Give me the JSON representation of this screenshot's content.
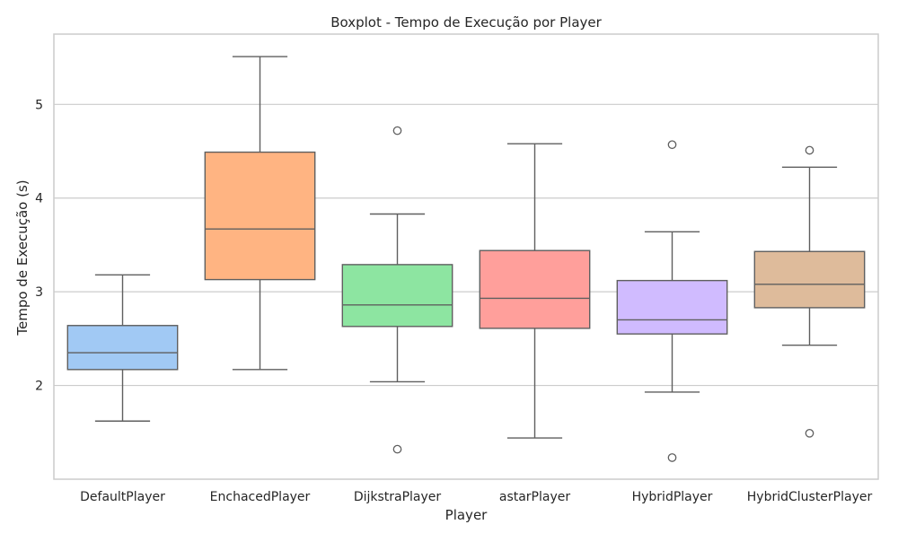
{
  "chart_data": {
    "type": "boxplot",
    "title": "Boxplot - Tempo de Execução por Player",
    "xlabel": "Player",
    "ylabel": "Tempo de Execução (s)",
    "ylim": [
      1.0,
      5.75
    ],
    "yticks": [
      2,
      3,
      4,
      5
    ],
    "grid": "horizontal",
    "categories": [
      "DefaultPlayer",
      "EnchacedPlayer",
      "DijkstraPlayer",
      "astarPlayer",
      "HybridPlayer",
      "HybridClusterPlayer"
    ],
    "boxes": [
      {
        "whisker_low": 1.62,
        "q1": 2.17,
        "median": 2.35,
        "q3": 2.64,
        "whisker_high": 3.18,
        "outliers": [],
        "color": "#a1c9f4"
      },
      {
        "whisker_low": 2.17,
        "q1": 3.13,
        "median": 3.67,
        "q3": 4.49,
        "whisker_high": 5.51,
        "outliers": [],
        "color": "#ffb482"
      },
      {
        "whisker_low": 2.04,
        "q1": 2.63,
        "median": 2.86,
        "q3": 3.29,
        "whisker_high": 3.83,
        "outliers": [
          1.32,
          4.72
        ],
        "color": "#8de5a1"
      },
      {
        "whisker_low": 1.44,
        "q1": 2.61,
        "median": 2.93,
        "q3": 3.44,
        "whisker_high": 4.58,
        "outliers": [],
        "color": "#ff9f9b"
      },
      {
        "whisker_low": 1.93,
        "q1": 2.55,
        "median": 2.7,
        "q3": 3.12,
        "whisker_high": 3.64,
        "outliers": [
          1.23,
          4.57
        ],
        "color": "#d0bbff"
      },
      {
        "whisker_low": 2.43,
        "q1": 2.83,
        "median": 3.08,
        "q3": 3.43,
        "whisker_high": 4.33,
        "outliers": [
          1.49,
          4.51
        ],
        "color": "#debb9b"
      }
    ]
  }
}
